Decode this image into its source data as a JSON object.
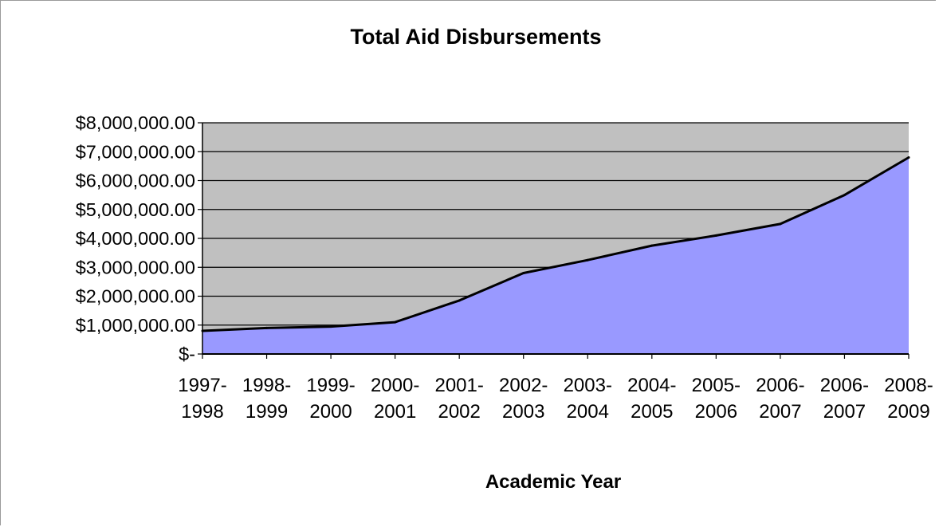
{
  "chart_data": {
    "type": "area",
    "title": "Total Aid Disbursements",
    "xlabel": "Academic Year",
    "ylabel": "",
    "ylim": [
      0,
      8000000
    ],
    "y_ticks": [
      0,
      1000000,
      2000000,
      3000000,
      4000000,
      5000000,
      6000000,
      7000000,
      8000000
    ],
    "y_tick_labels": [
      "$-",
      "$1,000,000.00",
      "$2,000,000.00",
      "$3,000,000.00",
      "$4,000,000.00",
      "$5,000,000.00",
      "$6,000,000.00",
      "$7,000,000.00",
      "$8,000,000.00"
    ],
    "categories": [
      [
        "1997-",
        "1998"
      ],
      [
        "1998-",
        "1999"
      ],
      [
        "1999-",
        "2000"
      ],
      [
        "2000-",
        "2001"
      ],
      [
        "2001-",
        "2002"
      ],
      [
        "2002-",
        "2003"
      ],
      [
        "2003-",
        "2004"
      ],
      [
        "2004-",
        "2005"
      ],
      [
        "2005-",
        "2006"
      ],
      [
        "2006-",
        "2007"
      ],
      [
        "2006-",
        "2007"
      ],
      [
        "2008-",
        "2009"
      ]
    ],
    "values": [
      800000,
      900000,
      950000,
      1100000,
      1850000,
      2800000,
      3250000,
      3750000,
      4100000,
      4500000,
      5500000,
      6800000
    ],
    "grid": true,
    "legend": "none",
    "colors": {
      "plot_background": "#c0c0c0",
      "area_fill": "#9999ff",
      "line": "#000000",
      "gridline": "#000000"
    }
  }
}
